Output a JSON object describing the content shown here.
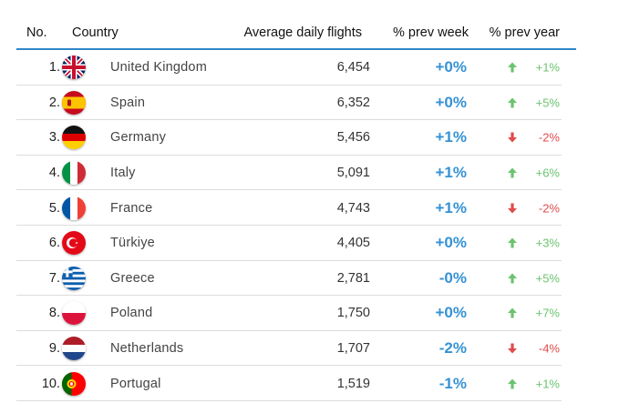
{
  "headers": {
    "no": "No.",
    "country": "Country",
    "flights": "Average daily flights",
    "week": "% prev week",
    "year": "% prev year"
  },
  "colors": {
    "accent_line": "#2e86c8",
    "week_change": "#3592d4",
    "increase": "#6cc36f",
    "decrease": "#e04b4b"
  },
  "rows": [
    {
      "no": "1.",
      "country": "United Kingdom",
      "flag": "uk-flag-icon",
      "flights": "6,454",
      "week": "+0%",
      "year": "+1%",
      "trend": "up"
    },
    {
      "no": "2.",
      "country": "Spain",
      "flag": "spain-flag-icon",
      "flights": "6,352",
      "week": "+0%",
      "year": "+5%",
      "trend": "up"
    },
    {
      "no": "3.",
      "country": "Germany",
      "flag": "germany-flag-icon",
      "flights": "5,456",
      "week": "+1%",
      "year": "-2%",
      "trend": "down"
    },
    {
      "no": "4.",
      "country": "Italy",
      "flag": "italy-flag-icon",
      "flights": "5,091",
      "week": "+1%",
      "year": "+6%",
      "trend": "up"
    },
    {
      "no": "5.",
      "country": "France",
      "flag": "france-flag-icon",
      "flights": "4,743",
      "week": "+1%",
      "year": "-2%",
      "trend": "down"
    },
    {
      "no": "6.",
      "country": "Türkiye",
      "flag": "turkiye-flag-icon",
      "flights": "4,405",
      "week": "+0%",
      "year": "+3%",
      "trend": "up"
    },
    {
      "no": "7.",
      "country": "Greece",
      "flag": "greece-flag-icon",
      "flights": "2,781",
      "week": "-0%",
      "year": "+5%",
      "trend": "up"
    },
    {
      "no": "8.",
      "country": "Poland",
      "flag": "poland-flag-icon",
      "flights": "1,750",
      "week": "+0%",
      "year": "+7%",
      "trend": "up"
    },
    {
      "no": "9.",
      "country": "Netherlands",
      "flag": "netherlands-flag-icon",
      "flights": "1,707",
      "week": "-2%",
      "year": "-4%",
      "trend": "down"
    },
    {
      "no": "10.",
      "country": "Portugal",
      "flag": "portugal-flag-icon",
      "flights": "1,519",
      "week": "-1%",
      "year": "+1%",
      "trend": "up"
    }
  ]
}
